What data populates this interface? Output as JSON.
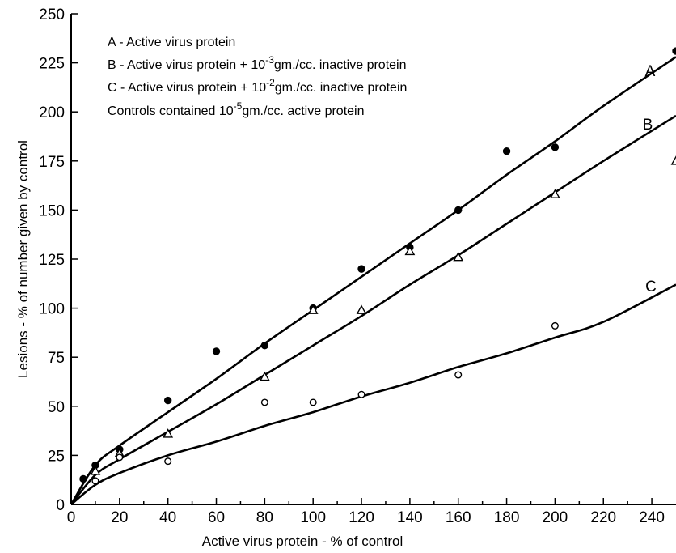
{
  "chart_data": {
    "type": "scatter",
    "title": "",
    "xlabel": "Active virus protein - % of control",
    "ylabel": "Lesions - % of number given by control",
    "xlim": [
      0,
      250
    ],
    "ylim": [
      0,
      250
    ],
    "x_ticks": [
      "0",
      "20",
      "40",
      "60",
      "80",
      "100",
      "120",
      "140",
      "160",
      "180",
      "200",
      "220",
      "240"
    ],
    "y_ticks": [
      "0",
      "25",
      "50",
      "75",
      "100",
      "125",
      "150",
      "175",
      "200",
      "225",
      "250"
    ],
    "grid": false,
    "legend": {
      "placement": "top-left",
      "entries": [
        {
          "text": "A - Active virus protein"
        },
        {
          "pre": "B - Active virus protein  +  10",
          "sup": "-3",
          "post": "gm./cc. inactive protein"
        },
        {
          "pre": "C - Active virus protein  +  10",
          "sup": "-2",
          "post": "gm./cc. inactive protein"
        },
        {
          "pre": "Controls contained 10",
          "sup": "-5",
          "post": "gm./cc. active protein"
        }
      ]
    },
    "series": [
      {
        "name": "A",
        "marker": "filled-circle",
        "points": [
          [
            5,
            13
          ],
          [
            10,
            20
          ],
          [
            20,
            28
          ],
          [
            40,
            53
          ],
          [
            60,
            78
          ],
          [
            80,
            81
          ],
          [
            100,
            100
          ],
          [
            120,
            120
          ],
          [
            140,
            131
          ],
          [
            160,
            150
          ],
          [
            180,
            180
          ],
          [
            200,
            182
          ],
          [
            250,
            231
          ]
        ],
        "fit": [
          [
            0,
            0
          ],
          [
            10,
            20
          ],
          [
            20,
            30
          ],
          [
            40,
            47
          ],
          [
            60,
            64
          ],
          [
            80,
            82
          ],
          [
            100,
            99
          ],
          [
            120,
            116
          ],
          [
            140,
            133
          ],
          [
            160,
            150
          ],
          [
            180,
            168
          ],
          [
            200,
            185
          ],
          [
            220,
            203
          ],
          [
            250,
            228
          ]
        ]
      },
      {
        "name": "B",
        "marker": "open-triangle",
        "points": [
          [
            10,
            17
          ],
          [
            20,
            26
          ],
          [
            40,
            36
          ],
          [
            80,
            65
          ],
          [
            100,
            99
          ],
          [
            120,
            99
          ],
          [
            140,
            129
          ],
          [
            160,
            126
          ],
          [
            200,
            158
          ],
          [
            250,
            175
          ]
        ],
        "fit": [
          [
            0,
            0
          ],
          [
            10,
            15
          ],
          [
            20,
            23
          ],
          [
            40,
            37
          ],
          [
            60,
            51
          ],
          [
            80,
            66
          ],
          [
            100,
            81
          ],
          [
            120,
            96
          ],
          [
            140,
            112
          ],
          [
            160,
            127
          ],
          [
            180,
            143
          ],
          [
            200,
            159
          ],
          [
            220,
            175
          ],
          [
            250,
            198
          ]
        ]
      },
      {
        "name": "C",
        "marker": "open-circle",
        "points": [
          [
            10,
            12
          ],
          [
            20,
            24
          ],
          [
            40,
            22
          ],
          [
            80,
            52
          ],
          [
            100,
            52
          ],
          [
            120,
            56
          ],
          [
            160,
            66
          ],
          [
            200,
            91
          ]
        ],
        "fit": [
          [
            0,
            0
          ],
          [
            10,
            10
          ],
          [
            20,
            16
          ],
          [
            40,
            25
          ],
          [
            60,
            32
          ],
          [
            80,
            40
          ],
          [
            100,
            47
          ],
          [
            120,
            55
          ],
          [
            140,
            62
          ],
          [
            160,
            70
          ],
          [
            180,
            77
          ],
          [
            200,
            85
          ],
          [
            220,
            93
          ],
          [
            250,
            112
          ]
        ]
      }
    ]
  }
}
